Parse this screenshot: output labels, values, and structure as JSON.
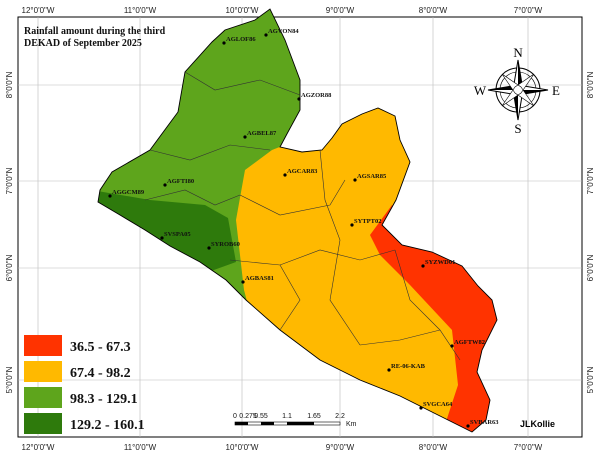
{
  "title": {
    "lines": [
      "Rainfall amount during  the third",
      "DEKAD of September 2025"
    ]
  },
  "graticule": {
    "top": [
      "12°0'0\"W",
      "11°0'0\"W",
      "10°0'0\"W",
      "9°0'0\"W",
      "8°0'0\"W",
      "7°0'0\"W"
    ],
    "bottom": [
      "12°0'0\"W",
      "11°0'0\"W",
      "10°0'0\"W",
      "9°0'0\"W",
      "8°0'0\"W",
      "7°0'0\"W"
    ],
    "left": [
      "8°0'0\"N",
      "7°0'0\"N",
      "6°0'0\"N",
      "5°0'0\"N"
    ],
    "right": [
      "8°0'0\"N",
      "7°0'0\"N",
      "6°0'0\"N",
      "5°0'0\"N"
    ]
  },
  "stations": [
    "AGLOF86",
    "AGVON84",
    "AGZOR88",
    "AGBEL87",
    "AGCAR83",
    "AGSAR85",
    "AGFTI80",
    "AGGCM89",
    "SYTPT02",
    "SVSPA05",
    "SYROB60",
    "SYZWD01",
    "AGBAS81",
    "AGFTW82",
    "RE-06-KAB",
    "SVGCA64",
    "SVBAR63"
  ],
  "legend": [
    {
      "label": "36.5 - 67.3",
      "color": "#ff3300"
    },
    {
      "label": "67.4 - 98.2",
      "color": "#ffb900"
    },
    {
      "label": "98.3 - 129.1",
      "color": "#5ea51c"
    },
    {
      "label": "129.2 - 160.1",
      "color": "#2e7a0c"
    }
  ],
  "compass": {
    "n": "N",
    "s": "S",
    "e": "E",
    "w": "W"
  },
  "scale_bar": {
    "labels": [
      "0",
      "0.275",
      "0.55",
      "1.1",
      "1.65",
      "2.2"
    ],
    "unit": "Km"
  },
  "author": "JLKollie"
}
